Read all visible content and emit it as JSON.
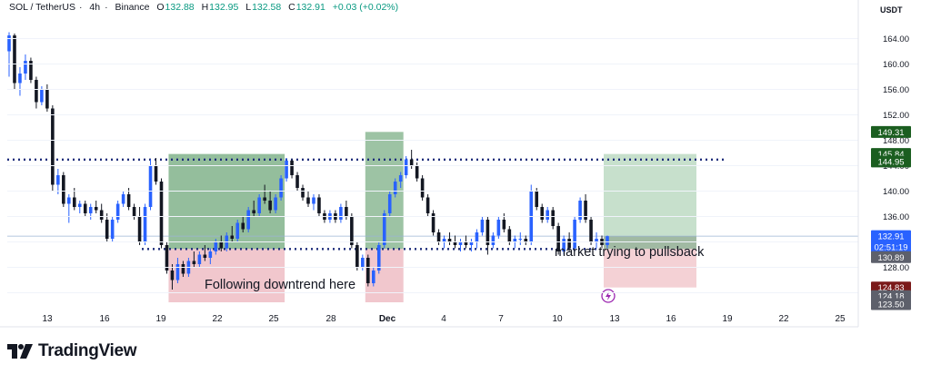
{
  "header": {
    "symbol": "SOL / TetherUS",
    "interval": "4h",
    "exchange": "Binance",
    "open_label": "O",
    "open": "132.88",
    "high_label": "H",
    "high": "132.95",
    "low_label": "L",
    "low": "132.58",
    "close_label": "C",
    "close": "132.91",
    "change": "+0.03 (+0.02%)"
  },
  "price_unit": "USDT",
  "brand": "TradingView",
  "chart_data": {
    "type": "candlestick",
    "ylim": [
      121.5,
      167.5
    ],
    "y_ticks": [
      "164.00",
      "160.00",
      "156.00",
      "152.00",
      "148.00",
      "144.00",
      "140.00",
      "136.00",
      "132.00",
      "128.00",
      "124.00"
    ],
    "x_ticks": [
      "13",
      "16",
      "19",
      "22",
      "25",
      "28",
      "Dec",
      "4",
      "7",
      "10",
      "13",
      "16",
      "19",
      "22",
      "25"
    ],
    "candles": [
      [
        162.0,
        165.0,
        158.0,
        164.5
      ],
      [
        164.5,
        164.8,
        156.0,
        157.0
      ],
      [
        157.0,
        159.5,
        155.0,
        158.5
      ],
      [
        158.5,
        161.5,
        157.5,
        160.5
      ],
      [
        160.5,
        161.0,
        157.0,
        157.5
      ],
      [
        157.5,
        158.0,
        153.0,
        154.0
      ],
      [
        154.0,
        156.5,
        153.5,
        156.0
      ],
      [
        156.0,
        156.8,
        152.5,
        153.0
      ],
      [
        153.0,
        153.5,
        140.0,
        141.0
      ],
      [
        141.0,
        143.5,
        139.5,
        142.5
      ],
      [
        142.5,
        143.0,
        137.5,
        138.0
      ],
      [
        138.0,
        139.5,
        135.0,
        139.0
      ],
      [
        139.0,
        140.5,
        137.0,
        137.5
      ],
      [
        137.5,
        138.5,
        136.5,
        138.0
      ],
      [
        138.0,
        138.5,
        136.0,
        136.5
      ],
      [
        136.5,
        138.0,
        135.5,
        137.5
      ],
      [
        137.5,
        138.5,
        136.5,
        137.0
      ],
      [
        137.0,
        138.0,
        135.0,
        135.5
      ],
      [
        135.5,
        136.5,
        132.0,
        132.5
      ],
      [
        132.5,
        136.0,
        132.0,
        135.5
      ],
      [
        135.5,
        138.5,
        135.0,
        138.0
      ],
      [
        138.0,
        140.0,
        137.5,
        139.5
      ],
      [
        139.5,
        140.5,
        137.0,
        137.5
      ],
      [
        137.5,
        138.0,
        135.5,
        136.0
      ],
      [
        136.0,
        137.5,
        131.5,
        132.0
      ],
      [
        132.0,
        138.0,
        131.5,
        137.5
      ],
      [
        137.5,
        145.0,
        137.0,
        144.0
      ],
      [
        144.0,
        145.2,
        141.0,
        141.5
      ],
      [
        141.5,
        142.0,
        131.0,
        131.5
      ],
      [
        131.5,
        132.0,
        127.0,
        127.5
      ],
      [
        127.5,
        128.5,
        124.5,
        126.0
      ],
      [
        126.0,
        129.5,
        125.5,
        128.5
      ],
      [
        128.5,
        129.0,
        126.5,
        127.0
      ],
      [
        127.0,
        129.5,
        126.5,
        129.0
      ],
      [
        129.0,
        130.5,
        128.0,
        128.5
      ],
      [
        128.5,
        130.5,
        128.0,
        130.0
      ],
      [
        130.0,
        131.5,
        129.0,
        129.5
      ],
      [
        129.5,
        131.0,
        128.5,
        130.5
      ],
      [
        130.5,
        132.5,
        130.0,
        132.0
      ],
      [
        132.0,
        133.0,
        130.5,
        131.0
      ],
      [
        131.0,
        133.5,
        130.5,
        133.0
      ],
      [
        133.0,
        134.5,
        132.0,
        132.5
      ],
      [
        132.5,
        135.5,
        132.0,
        135.0
      ],
      [
        135.0,
        136.0,
        133.5,
        134.0
      ],
      [
        134.0,
        137.5,
        133.5,
        137.0
      ],
      [
        137.0,
        138.5,
        136.0,
        136.5
      ],
      [
        136.5,
        139.5,
        136.0,
        139.0
      ],
      [
        139.0,
        141.0,
        138.0,
        138.5
      ],
      [
        138.5,
        140.0,
        136.5,
        137.0
      ],
      [
        137.0,
        139.5,
        136.5,
        139.0
      ],
      [
        139.0,
        142.5,
        138.5,
        142.0
      ],
      [
        142.0,
        145.2,
        141.5,
        144.8
      ],
      [
        144.8,
        145.0,
        142.0,
        142.5
      ],
      [
        142.5,
        143.0,
        140.0,
        140.5
      ],
      [
        140.5,
        141.0,
        138.5,
        139.0
      ],
      [
        139.0,
        140.0,
        137.5,
        138.0
      ],
      [
        138.0,
        139.5,
        137.0,
        139.0
      ],
      [
        139.0,
        139.5,
        136.0,
        136.5
      ],
      [
        136.5,
        137.0,
        135.0,
        135.5
      ],
      [
        135.5,
        137.0,
        135.0,
        136.5
      ],
      [
        136.5,
        137.0,
        135.0,
        135.5
      ],
      [
        135.5,
        138.0,
        135.0,
        137.5
      ],
      [
        137.5,
        138.5,
        135.5,
        136.0
      ],
      [
        136.0,
        136.5,
        131.0,
        131.5
      ],
      [
        131.5,
        132.0,
        127.5,
        128.0
      ],
      [
        128.0,
        130.0,
        127.5,
        129.5
      ],
      [
        129.5,
        130.0,
        125.0,
        125.5
      ],
      [
        125.5,
        128.0,
        125.0,
        127.5
      ],
      [
        127.5,
        132.0,
        127.0,
        131.5
      ],
      [
        131.5,
        137.0,
        131.0,
        136.5
      ],
      [
        136.5,
        140.0,
        136.0,
        139.5
      ],
      [
        139.5,
        142.0,
        139.0,
        141.5
      ],
      [
        141.5,
        143.0,
        140.5,
        142.5
      ],
      [
        142.5,
        145.5,
        142.0,
        145.0
      ],
      [
        145.0,
        146.5,
        143.5,
        144.0
      ],
      [
        144.0,
        144.5,
        141.5,
        142.0
      ],
      [
        142.0,
        142.5,
        138.5,
        139.0
      ],
      [
        139.0,
        139.5,
        136.0,
        136.5
      ],
      [
        136.5,
        137.0,
        133.0,
        133.5
      ],
      [
        133.5,
        134.0,
        131.5,
        132.0
      ],
      [
        132.0,
        133.0,
        131.0,
        132.5
      ],
      [
        132.5,
        133.5,
        131.5,
        132.0
      ],
      [
        132.0,
        133.0,
        131.0,
        131.5
      ],
      [
        131.5,
        132.5,
        130.5,
        132.0
      ],
      [
        132.0,
        133.0,
        131.0,
        131.5
      ],
      [
        131.5,
        132.5,
        130.5,
        132.0
      ],
      [
        132.0,
        134.0,
        131.0,
        133.5
      ],
      [
        133.5,
        136.0,
        133.0,
        135.5
      ],
      [
        135.5,
        136.0,
        130.0,
        131.5
      ],
      [
        131.5,
        133.5,
        131.0,
        133.0
      ],
      [
        133.0,
        136.0,
        132.5,
        135.5
      ],
      [
        135.5,
        136.5,
        133.5,
        134.0
      ],
      [
        134.0,
        134.5,
        131.5,
        132.0
      ],
      [
        132.0,
        133.0,
        131.0,
        132.5
      ],
      [
        132.5,
        133.5,
        131.5,
        132.5
      ],
      [
        132.5,
        133.0,
        131.5,
        132.0
      ],
      [
        132.0,
        141.0,
        131.5,
        140.0
      ],
      [
        140.0,
        140.5,
        137.0,
        137.5
      ],
      [
        137.5,
        138.0,
        135.0,
        135.5
      ],
      [
        135.5,
        137.5,
        135.0,
        137.0
      ],
      [
        137.0,
        137.5,
        134.0,
        134.5
      ],
      [
        134.5,
        135.0,
        130.0,
        130.5
      ],
      [
        130.5,
        133.0,
        130.0,
        132.5
      ],
      [
        132.5,
        133.5,
        130.5,
        131.0
      ],
      [
        131.0,
        136.0,
        130.5,
        135.5
      ],
      [
        135.5,
        139.0,
        135.0,
        138.5
      ],
      [
        138.5,
        139.5,
        135.0,
        135.5
      ],
      [
        135.5,
        136.0,
        131.5,
        132.0
      ],
      [
        132.0,
        133.5,
        131.0,
        132.5
      ],
      [
        132.5,
        133.0,
        131.0,
        131.5
      ],
      [
        131.5,
        133.0,
        131.0,
        132.9
      ]
    ],
    "resistance_level": 144.95,
    "support_level": 130.89,
    "long_position": {
      "entry": 130.89,
      "target": 145.84,
      "stop": 124.83
    },
    "price_labels": [
      "149.31",
      "145.84",
      "144.95",
      "132.91",
      "02:51:19",
      "130.89",
      "124.83",
      "124.18",
      "123.50"
    ],
    "annotations": [
      "Following downtrend here",
      "market trying to pullsback"
    ]
  }
}
